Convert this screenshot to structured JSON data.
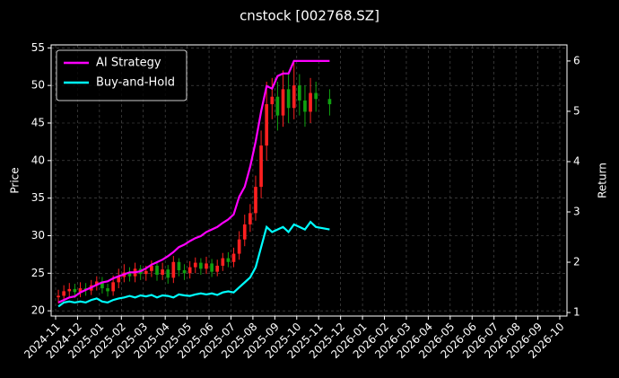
{
  "chart_data": {
    "type": "candlestick",
    "title": "cnstock [002768.SZ]",
    "ylabel": "Price",
    "y2label": "Return",
    "x": [
      "2024-11",
      "2024-11",
      "2024-11",
      "2024-11",
      "2024-12",
      "2024-12",
      "2024-12",
      "2024-12",
      "2025-01",
      "2025-01",
      "2025-01",
      "2025-01",
      "2025-02",
      "2025-02",
      "2025-02",
      "2025-02",
      "2025-03",
      "2025-03",
      "2025-03",
      "2025-03",
      "2025-04",
      "2025-04",
      "2025-04",
      "2025-04",
      "2025-05",
      "2025-05",
      "2025-05",
      "2025-05",
      "2025-06",
      "2025-06",
      "2025-06",
      "2025-06",
      "2025-07",
      "2025-07",
      "2025-07",
      "2025-07",
      "2025-08",
      "2025-08",
      "2025-08",
      "2025-08",
      "2025-09",
      "2025-09",
      "2025-09",
      "2025-09",
      "2025-10",
      "2025-10",
      "2025-10",
      "2025-10",
      "2025-11"
    ],
    "open": [
      21.8,
      22.0,
      22.6,
      22.9,
      22.5,
      23.0,
      22.7,
      23.4,
      23.9,
      23.0,
      22.6,
      23.8,
      24.5,
      25.1,
      24.6,
      25.6,
      24.9,
      25.3,
      26.0,
      24.8,
      25.5,
      24.4,
      26.5,
      25.4,
      25.0,
      25.8,
      26.4,
      25.6,
      26.3,
      25.2,
      26.0,
      27.0,
      26.5,
      27.6,
      29.5,
      31.5,
      33.0,
      36.5,
      42.0,
      47.5,
      48.5,
      46.0,
      49.5,
      47.0,
      50.0,
      48.0,
      46.5,
      49.0,
      48.2
    ],
    "high": [
      22.8,
      23.4,
      23.7,
      23.6,
      23.8,
      23.7,
      24.1,
      24.6,
      24.5,
      23.6,
      24.7,
      25.6,
      26.2,
      25.8,
      26.4,
      26.1,
      26.0,
      26.7,
      26.5,
      26.4,
      26.1,
      27.3,
      27.0,
      26.2,
      26.6,
      27.1,
      27.0,
      27.2,
      26.9,
      26.8,
      27.7,
      27.8,
      28.4,
      30.6,
      32.8,
      34.2,
      38.0,
      44.0,
      50.5,
      51.0,
      50.5,
      52.0,
      51.5,
      53.0,
      51.5,
      50.0,
      51.0,
      50.5,
      49.5
    ],
    "low": [
      21.0,
      21.3,
      21.9,
      21.7,
      21.8,
      22.0,
      22.1,
      22.7,
      22.3,
      21.9,
      22.0,
      23.0,
      23.8,
      23.9,
      23.8,
      24.1,
      24.0,
      24.5,
      24.0,
      24.1,
      23.6,
      23.7,
      24.6,
      24.1,
      24.3,
      25.0,
      24.8,
      24.9,
      24.5,
      24.6,
      25.3,
      25.8,
      25.8,
      26.8,
      28.6,
      30.5,
      32.0,
      35.0,
      40.0,
      45.5,
      44.0,
      44.5,
      45.0,
      45.5,
      46.0,
      44.5,
      45.0,
      46.5,
      46.0
    ],
    "close": [
      22.0,
      22.6,
      22.9,
      22.5,
      23.0,
      22.7,
      23.4,
      23.9,
      23.0,
      22.6,
      23.8,
      24.5,
      25.1,
      24.6,
      25.6,
      24.9,
      25.3,
      26.0,
      24.8,
      25.5,
      24.4,
      26.5,
      25.4,
      25.0,
      25.8,
      26.4,
      25.6,
      26.3,
      25.2,
      26.0,
      27.0,
      26.5,
      27.6,
      29.5,
      31.5,
      33.0,
      36.5,
      42.0,
      47.5,
      48.5,
      46.0,
      49.5,
      47.0,
      50.0,
      48.0,
      46.5,
      49.0,
      48.2,
      47.5
    ],
    "up_color": "#ff2020",
    "down_color": "#10a010",
    "series": [
      {
        "name": "AI Strategy",
        "color": "#ff00ff",
        "axis": "y2",
        "values": [
          1.2,
          1.25,
          1.3,
          1.32,
          1.4,
          1.45,
          1.5,
          1.55,
          1.6,
          1.62,
          1.68,
          1.72,
          1.76,
          1.8,
          1.8,
          1.82,
          1.88,
          1.95,
          2.0,
          2.05,
          2.12,
          2.2,
          2.3,
          2.35,
          2.42,
          2.48,
          2.52,
          2.6,
          2.65,
          2.7,
          2.78,
          2.85,
          2.95,
          3.3,
          3.5,
          3.9,
          4.4,
          5.0,
          5.5,
          5.45,
          5.7,
          5.75,
          5.75,
          6.0,
          6.0,
          6.0,
          6.0,
          6.0,
          6.0
        ]
      },
      {
        "name": "Buy-and-Hold",
        "color": "#00ffff",
        "axis": "y2",
        "values": [
          1.12,
          1.2,
          1.22,
          1.2,
          1.22,
          1.2,
          1.25,
          1.28,
          1.22,
          1.2,
          1.25,
          1.28,
          1.3,
          1.33,
          1.3,
          1.34,
          1.32,
          1.35,
          1.3,
          1.34,
          1.33,
          1.3,
          1.36,
          1.34,
          1.33,
          1.36,
          1.38,
          1.36,
          1.38,
          1.35,
          1.4,
          1.42,
          1.4,
          1.5,
          1.6,
          1.7,
          1.9,
          2.3,
          2.7,
          2.6,
          2.65,
          2.7,
          2.6,
          2.75,
          2.7,
          2.65,
          2.8,
          2.7,
          2.65
        ]
      }
    ],
    "xlim": [
      "2024-11",
      "2026-10"
    ],
    "xticks": [
      "2024-11",
      "2024-12",
      "2025-01",
      "2025-02",
      "2025-03",
      "2025-04",
      "2025-05",
      "2025-06",
      "2025-07",
      "2025-08",
      "2025-09",
      "2025-10",
      "2025-11",
      "2025-12",
      "2026-01",
      "2026-02",
      "2026-03",
      "2026-04",
      "2026-05",
      "2026-06",
      "2026-07",
      "2026-08",
      "2026-09",
      "2026-10"
    ],
    "ylim": [
      19.3,
      55.4
    ],
    "yticks": [
      20,
      25,
      30,
      35,
      40,
      45,
      50,
      55
    ],
    "y2lim": [
      0.93,
      6.32
    ],
    "y2ticks": [
      1,
      2,
      3,
      4,
      5,
      6
    ],
    "grid": true,
    "legend": "upper left"
  }
}
